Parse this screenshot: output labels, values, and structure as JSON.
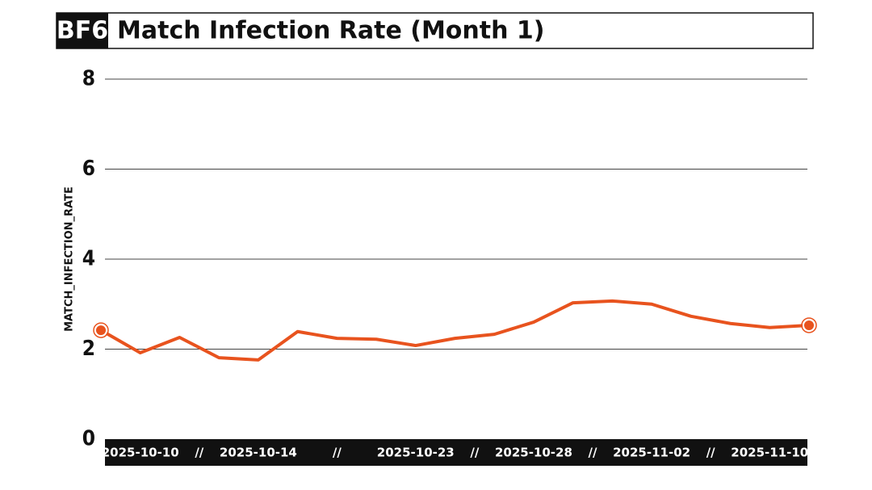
{
  "chart_data": {
    "type": "line",
    "brand": "BF6",
    "title": "Match Infection Rate (Month 1)",
    "y_label": "MATCH_INFECTION_RATE",
    "x_separator": "//",
    "categories": [
      null,
      "2025-10-10",
      null,
      null,
      "2025-10-14",
      null,
      null,
      null,
      "2025-10-23",
      null,
      null,
      "2025-10-28",
      null,
      null,
      "2025-11-02",
      null,
      null,
      "2025-11-10",
      null
    ],
    "series": [
      {
        "name": "match_infection_rate",
        "color": "#e8531e",
        "values": [
          2.42,
          1.92,
          2.26,
          1.81,
          1.76,
          2.39,
          2.24,
          2.22,
          2.08,
          2.24,
          2.33,
          2.6,
          3.03,
          3.07,
          3.0,
          2.73,
          2.57,
          2.48,
          2.53
        ]
      }
    ],
    "ylim": [
      0,
      8
    ],
    "yticks": [
      0,
      2,
      4,
      6,
      8
    ],
    "grid": true
  }
}
